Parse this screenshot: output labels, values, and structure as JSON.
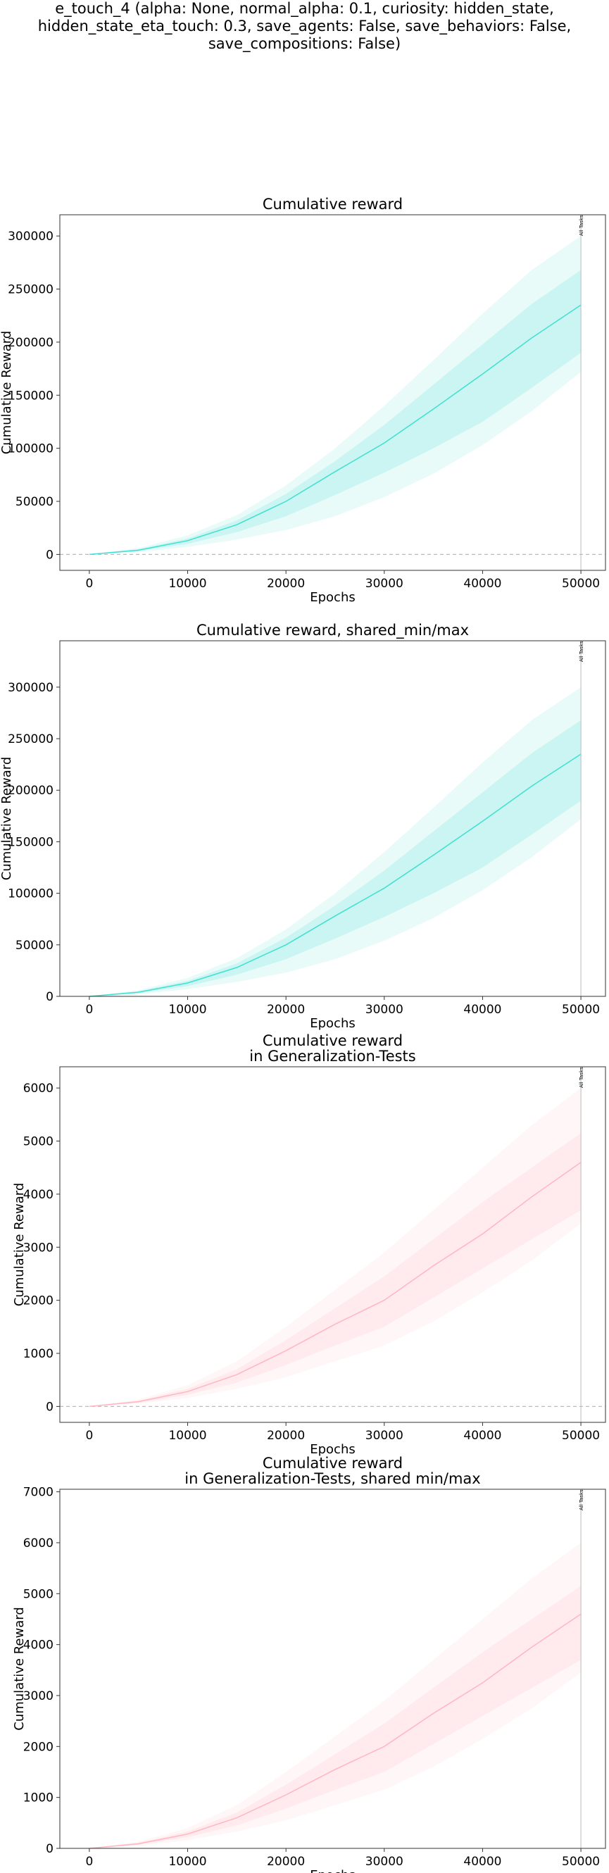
{
  "suptitle_lines": [
    "e_touch_4 (alpha: None, normal_alpha: 0.1, curiosity: hidden_state,",
    "hidden_state_eta_touch: 0.3, save_agents: False, save_behaviors: False,",
    "save_compositions: False)"
  ],
  "colors": {
    "reward_line": "#40e0d0",
    "reward_band": "#40e0d0",
    "gen_line": "#ffb6c1",
    "gen_band": "#ffb6c1",
    "vline": "#bbbbbb",
    "zero_line": "#bbbbbb"
  },
  "chart_data": [
    {
      "type": "line",
      "title": "Cumulative reward",
      "xlabel": "Epochs",
      "ylabel": "Cumulative Reward",
      "xlim": [
        -3000,
        52500
      ],
      "ylim": [
        -15000,
        320000
      ],
      "xticks": [
        0,
        10000,
        20000,
        30000,
        40000,
        50000
      ],
      "yticks": [
        0,
        50000,
        100000,
        150000,
        200000,
        250000,
        300000
      ],
      "zero_line": true,
      "vline": {
        "x": 50000,
        "label": "All Tasks"
      },
      "x": [
        0,
        5000,
        10000,
        15000,
        20000,
        25000,
        30000,
        35000,
        40000,
        45000,
        50000
      ],
      "series": [
        {
          "mean": [
            0,
            4000,
            13000,
            28000,
            50000,
            78000,
            105000,
            137000,
            170000,
            204000,
            235000
          ],
          "inner_low": [
            0,
            3000,
            10000,
            21000,
            36000,
            56000,
            77000,
            100000,
            125000,
            157000,
            190000
          ],
          "inner_high": [
            0,
            5000,
            15000,
            32000,
            57000,
            88000,
            122000,
            160000,
            198000,
            236000,
            268000
          ],
          "outer_low": [
            0,
            2000,
            7000,
            14000,
            23000,
            36000,
            54000,
            76000,
            103000,
            135000,
            172000
          ],
          "outer_high": [
            0,
            6000,
            18000,
            37000,
            65000,
            100000,
            140000,
            183000,
            227000,
            268000,
            300000
          ]
        }
      ]
    },
    {
      "type": "line",
      "title": "Cumulative reward, shared_min/max",
      "xlabel": "Epochs",
      "ylabel": "Cumulative Reward",
      "xlim": [
        -3000,
        52500
      ],
      "ylim": [
        0,
        345000
      ],
      "xticks": [
        0,
        10000,
        20000,
        30000,
        40000,
        50000
      ],
      "yticks": [
        0,
        50000,
        100000,
        150000,
        200000,
        250000,
        300000
      ],
      "zero_line": false,
      "vline": {
        "x": 50000,
        "label": "All Tasks"
      },
      "x": [
        0,
        5000,
        10000,
        15000,
        20000,
        25000,
        30000,
        35000,
        40000,
        45000,
        50000
      ],
      "series": [
        {
          "mean": [
            0,
            4000,
            13000,
            28000,
            50000,
            78000,
            105000,
            137000,
            170000,
            204000,
            235000
          ],
          "inner_low": [
            0,
            3000,
            10000,
            21000,
            36000,
            56000,
            77000,
            100000,
            125000,
            157000,
            190000
          ],
          "inner_high": [
            0,
            5000,
            15000,
            32000,
            57000,
            88000,
            122000,
            160000,
            198000,
            236000,
            268000
          ],
          "outer_low": [
            0,
            2000,
            7000,
            14000,
            23000,
            36000,
            54000,
            76000,
            103000,
            135000,
            172000
          ],
          "outer_high": [
            0,
            6000,
            18000,
            37000,
            65000,
            100000,
            140000,
            183000,
            227000,
            268000,
            300000
          ]
        }
      ]
    },
    {
      "type": "line",
      "title": "Cumulative reward\nin Generalization-Tests",
      "xlabel": "Epochs",
      "ylabel": "Cumulative Reward",
      "xlim": [
        -3000,
        52500
      ],
      "ylim": [
        -300,
        6400
      ],
      "xticks": [
        0,
        10000,
        20000,
        30000,
        40000,
        50000
      ],
      "yticks": [
        0,
        1000,
        2000,
        3000,
        4000,
        5000,
        6000
      ],
      "zero_line": true,
      "vline": {
        "x": 50000,
        "label": "All Tasks"
      },
      "x": [
        0,
        5000,
        10000,
        15000,
        20000,
        25000,
        30000,
        35000,
        40000,
        45000,
        50000
      ],
      "series": [
        {
          "mean": [
            0,
            90,
            280,
            600,
            1050,
            1550,
            2000,
            2650,
            3250,
            3950,
            4600
          ],
          "inner_low": [
            0,
            70,
            220,
            450,
            780,
            1150,
            1500,
            2050,
            2600,
            3150,
            3700
          ],
          "inner_high": [
            0,
            110,
            330,
            700,
            1250,
            1850,
            2450,
            3150,
            3850,
            4500,
            5150
          ],
          "outer_low": [
            0,
            50,
            160,
            330,
            550,
            850,
            1150,
            1600,
            2150,
            2750,
            3450
          ],
          "outer_high": [
            0,
            130,
            400,
            850,
            1500,
            2200,
            2900,
            3700,
            4500,
            5300,
            6000
          ]
        }
      ]
    },
    {
      "type": "line",
      "title": "Cumulative reward\nin Generalization-Tests, shared min/max",
      "xlabel": "Epochs",
      "ylabel": "Cumulative Reward",
      "xlim": [
        -3000,
        52500
      ],
      "ylim": [
        0,
        7050
      ],
      "xticks": [
        0,
        10000,
        20000,
        30000,
        40000,
        50000
      ],
      "yticks": [
        0,
        1000,
        2000,
        3000,
        4000,
        5000,
        6000,
        7000
      ],
      "zero_line": false,
      "vline": {
        "x": 50000,
        "label": "All Tasks"
      },
      "x": [
        0,
        5000,
        10000,
        15000,
        20000,
        25000,
        30000,
        35000,
        40000,
        45000,
        50000
      ],
      "series": [
        {
          "mean": [
            0,
            90,
            280,
            600,
            1050,
            1550,
            2000,
            2650,
            3250,
            3950,
            4600
          ],
          "inner_low": [
            0,
            70,
            220,
            450,
            780,
            1150,
            1500,
            2050,
            2600,
            3150,
            3700
          ],
          "inner_high": [
            0,
            110,
            330,
            700,
            1250,
            1850,
            2450,
            3150,
            3850,
            4500,
            5150
          ],
          "outer_low": [
            0,
            50,
            160,
            330,
            550,
            850,
            1150,
            1600,
            2150,
            2750,
            3450
          ],
          "outer_high": [
            0,
            130,
            400,
            850,
            1500,
            2200,
            2900,
            3700,
            4500,
            5300,
            6000
          ]
        }
      ]
    }
  ]
}
